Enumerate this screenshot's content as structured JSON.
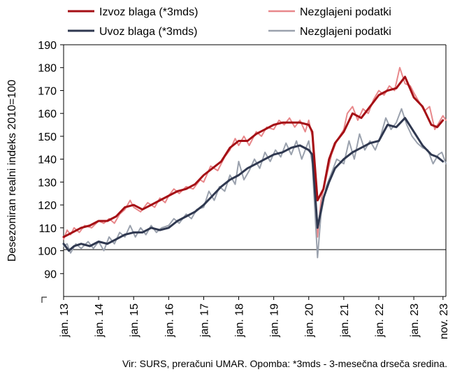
{
  "chart_data": {
    "type": "line",
    "ylabel": "Desezoniran realni indeks 2010=100",
    "source_note": "Vir: SURS, preračuni UMAR. Opomba: *3mds - 3-mesečna drseča sredina.",
    "y_ticks": [
      90,
      100,
      110,
      120,
      130,
      140,
      150,
      160,
      170,
      180,
      190
    ],
    "ylim": [
      80,
      190
    ],
    "xlim": [
      2013.0,
      2023.9167
    ],
    "x_tick_labels": [
      "jan. 13",
      "jan. 14",
      "jan. 15",
      "jan. 16",
      "jan. 17",
      "jan. 18",
      "jan. 19",
      "jan. 20",
      "jan. 21",
      "jan. 22",
      "jan. 23",
      "nov. 23"
    ],
    "x_tick_positions": [
      2013,
      2014,
      2015,
      2016,
      2017,
      2018,
      2019,
      2020,
      2021,
      2022,
      2023,
      2023.8333
    ],
    "reference_line": 100,
    "grid": false,
    "legend_position": "top",
    "colors": {
      "export_3m": "#a50f15",
      "export_raw": "#e8888b",
      "import_3m": "#2f3850",
      "import_raw": "#9aa1ad"
    },
    "series": [
      {
        "name": "Izvoz blaga (*3mds)",
        "key": "export_3m",
        "width": 3,
        "points": [
          [
            2013.0,
            106
          ],
          [
            2013.25,
            108
          ],
          [
            2013.5,
            110
          ],
          [
            2013.75,
            111
          ],
          [
            2014.0,
            113
          ],
          [
            2014.25,
            113
          ],
          [
            2014.5,
            115
          ],
          [
            2014.75,
            119
          ],
          [
            2015.0,
            120
          ],
          [
            2015.25,
            118
          ],
          [
            2015.5,
            120
          ],
          [
            2015.75,
            122
          ],
          [
            2016.0,
            124
          ],
          [
            2016.25,
            126
          ],
          [
            2016.5,
            127
          ],
          [
            2016.75,
            129
          ],
          [
            2017.0,
            133
          ],
          [
            2017.25,
            136
          ],
          [
            2017.5,
            139
          ],
          [
            2017.75,
            145
          ],
          [
            2018.0,
            148
          ],
          [
            2018.25,
            148
          ],
          [
            2018.5,
            151
          ],
          [
            2018.75,
            153
          ],
          [
            2019.0,
            155
          ],
          [
            2019.25,
            156
          ],
          [
            2019.5,
            156
          ],
          [
            2019.75,
            156
          ],
          [
            2020.0,
            155
          ],
          [
            2020.1,
            152
          ],
          [
            2020.25,
            122
          ],
          [
            2020.42,
            127
          ],
          [
            2020.58,
            140
          ],
          [
            2020.75,
            147
          ],
          [
            2021.0,
            152
          ],
          [
            2021.25,
            160
          ],
          [
            2021.5,
            158
          ],
          [
            2021.75,
            163
          ],
          [
            2022.0,
            168
          ],
          [
            2022.25,
            170
          ],
          [
            2022.5,
            171
          ],
          [
            2022.75,
            176
          ],
          [
            2023.0,
            167
          ],
          [
            2023.25,
            163
          ],
          [
            2023.5,
            155
          ],
          [
            2023.67,
            154
          ],
          [
            2023.83,
            157
          ]
        ]
      },
      {
        "name": "Nezglajeni podatki",
        "key": "export_raw",
        "width": 2,
        "points": [
          [
            2013.0,
            105
          ],
          [
            2013.1,
            109
          ],
          [
            2013.2,
            107
          ],
          [
            2013.3,
            110
          ],
          [
            2013.45,
            108
          ],
          [
            2013.6,
            111
          ],
          [
            2013.8,
            110
          ],
          [
            2014.0,
            113
          ],
          [
            2014.15,
            112
          ],
          [
            2014.3,
            114
          ],
          [
            2014.45,
            112
          ],
          [
            2014.6,
            116
          ],
          [
            2014.75,
            118
          ],
          [
            2014.9,
            122
          ],
          [
            2015.0,
            119
          ],
          [
            2015.2,
            117
          ],
          [
            2015.4,
            121
          ],
          [
            2015.6,
            119
          ],
          [
            2015.75,
            123
          ],
          [
            2015.9,
            121
          ],
          [
            2016.0,
            124
          ],
          [
            2016.15,
            127
          ],
          [
            2016.3,
            125
          ],
          [
            2016.5,
            128
          ],
          [
            2016.7,
            127
          ],
          [
            2016.9,
            131
          ],
          [
            2017.0,
            130
          ],
          [
            2017.2,
            137
          ],
          [
            2017.4,
            135
          ],
          [
            2017.6,
            141
          ],
          [
            2017.75,
            144
          ],
          [
            2017.9,
            149
          ],
          [
            2018.0,
            146
          ],
          [
            2018.15,
            150
          ],
          [
            2018.3,
            146
          ],
          [
            2018.5,
            152
          ],
          [
            2018.65,
            150
          ],
          [
            2018.8,
            154
          ],
          [
            2019.0,
            153
          ],
          [
            2019.15,
            157
          ],
          [
            2019.3,
            155
          ],
          [
            2019.45,
            158
          ],
          [
            2019.6,
            154
          ],
          [
            2019.75,
            157
          ],
          [
            2019.9,
            152
          ],
          [
            2020.0,
            157
          ],
          [
            2020.1,
            150
          ],
          [
            2020.25,
            106
          ],
          [
            2020.35,
            122
          ],
          [
            2020.5,
            132
          ],
          [
            2020.65,
            142
          ],
          [
            2020.8,
            148
          ],
          [
            2021.0,
            153
          ],
          [
            2021.1,
            160
          ],
          [
            2021.25,
            163
          ],
          [
            2021.4,
            157
          ],
          [
            2021.55,
            162
          ],
          [
            2021.7,
            160
          ],
          [
            2021.85,
            166
          ],
          [
            2022.0,
            170
          ],
          [
            2022.15,
            168
          ],
          [
            2022.3,
            172
          ],
          [
            2022.45,
            170
          ],
          [
            2022.6,
            180
          ],
          [
            2022.75,
            173
          ],
          [
            2022.9,
            172
          ],
          [
            2023.0,
            169
          ],
          [
            2023.15,
            165
          ],
          [
            2023.3,
            161
          ],
          [
            2023.45,
            163
          ],
          [
            2023.6,
            153
          ],
          [
            2023.72,
            156
          ],
          [
            2023.83,
            159
          ],
          [
            2023.92,
            157
          ]
        ]
      },
      {
        "name": "Uvoz blaga (*3mds)",
        "key": "import_3m",
        "width": 3,
        "points": [
          [
            2013.0,
            103
          ],
          [
            2013.15,
            100
          ],
          [
            2013.3,
            102
          ],
          [
            2013.5,
            103
          ],
          [
            2013.75,
            102
          ],
          [
            2014.0,
            104
          ],
          [
            2014.25,
            103
          ],
          [
            2014.5,
            105
          ],
          [
            2014.75,
            107
          ],
          [
            2015.0,
            108
          ],
          [
            2015.25,
            108
          ],
          [
            2015.5,
            110
          ],
          [
            2015.75,
            109
          ],
          [
            2016.0,
            110
          ],
          [
            2016.25,
            113
          ],
          [
            2016.5,
            115
          ],
          [
            2016.75,
            117
          ],
          [
            2017.0,
            120
          ],
          [
            2017.25,
            124
          ],
          [
            2017.5,
            128
          ],
          [
            2017.75,
            131
          ],
          [
            2018.0,
            133
          ],
          [
            2018.25,
            136
          ],
          [
            2018.5,
            138
          ],
          [
            2018.75,
            140
          ],
          [
            2019.0,
            142
          ],
          [
            2019.25,
            143
          ],
          [
            2019.5,
            145
          ],
          [
            2019.75,
            146
          ],
          [
            2020.0,
            144
          ],
          [
            2020.1,
            142
          ],
          [
            2020.25,
            110
          ],
          [
            2020.42,
            123
          ],
          [
            2020.58,
            130
          ],
          [
            2020.75,
            136
          ],
          [
            2021.0,
            140
          ],
          [
            2021.25,
            143
          ],
          [
            2021.5,
            145
          ],
          [
            2021.75,
            147
          ],
          [
            2022.0,
            148
          ],
          [
            2022.25,
            155
          ],
          [
            2022.5,
            154
          ],
          [
            2022.75,
            158
          ],
          [
            2023.0,
            152
          ],
          [
            2023.25,
            146
          ],
          [
            2023.5,
            142
          ],
          [
            2023.67,
            141
          ],
          [
            2023.83,
            139
          ]
        ]
      },
      {
        "name": "Nezglajeni podatki",
        "key": "import_raw",
        "width": 2,
        "points": [
          [
            2013.0,
            102
          ],
          [
            2013.1,
            103
          ],
          [
            2013.2,
            99
          ],
          [
            2013.35,
            103
          ],
          [
            2013.5,
            101
          ],
          [
            2013.7,
            104
          ],
          [
            2013.85,
            101
          ],
          [
            2014.0,
            104
          ],
          [
            2014.15,
            100
          ],
          [
            2014.3,
            106
          ],
          [
            2014.45,
            103
          ],
          [
            2014.6,
            108
          ],
          [
            2014.75,
            106
          ],
          [
            2014.9,
            111
          ],
          [
            2015.05,
            106
          ],
          [
            2015.2,
            110
          ],
          [
            2015.35,
            107
          ],
          [
            2015.5,
            111
          ],
          [
            2015.65,
            108
          ],
          [
            2015.8,
            110
          ],
          [
            2016.0,
            111
          ],
          [
            2016.15,
            114
          ],
          [
            2016.3,
            112
          ],
          [
            2016.5,
            116
          ],
          [
            2016.65,
            114
          ],
          [
            2016.8,
            118
          ],
          [
            2017.0,
            119
          ],
          [
            2017.15,
            126
          ],
          [
            2017.3,
            122
          ],
          [
            2017.45,
            128
          ],
          [
            2017.6,
            126
          ],
          [
            2017.75,
            133
          ],
          [
            2017.9,
            129
          ],
          [
            2018.0,
            139
          ],
          [
            2018.15,
            131
          ],
          [
            2018.3,
            135
          ],
          [
            2018.45,
            140
          ],
          [
            2018.6,
            136
          ],
          [
            2018.75,
            143
          ],
          [
            2018.9,
            139
          ],
          [
            2019.05,
            144
          ],
          [
            2019.2,
            141
          ],
          [
            2019.35,
            147
          ],
          [
            2019.5,
            142
          ],
          [
            2019.65,
            148
          ],
          [
            2019.8,
            140
          ],
          [
            2020.0,
            148
          ],
          [
            2020.1,
            138
          ],
          [
            2020.25,
            97
          ],
          [
            2020.35,
            116
          ],
          [
            2020.5,
            128
          ],
          [
            2020.65,
            134
          ],
          [
            2020.8,
            140
          ],
          [
            2021.0,
            138
          ],
          [
            2021.15,
            148
          ],
          [
            2021.3,
            140
          ],
          [
            2021.45,
            151
          ],
          [
            2021.6,
            144
          ],
          [
            2021.75,
            148
          ],
          [
            2021.9,
            144
          ],
          [
            2022.05,
            150
          ],
          [
            2022.2,
            158
          ],
          [
            2022.35,
            153
          ],
          [
            2022.5,
            156
          ],
          [
            2022.65,
            162
          ],
          [
            2022.8,
            155
          ],
          [
            2022.95,
            150
          ],
          [
            2023.1,
            147
          ],
          [
            2023.25,
            145
          ],
          [
            2023.4,
            144
          ],
          [
            2023.55,
            138
          ],
          [
            2023.7,
            142
          ],
          [
            2023.8,
            143
          ],
          [
            2023.92,
            138
          ]
        ]
      }
    ]
  }
}
